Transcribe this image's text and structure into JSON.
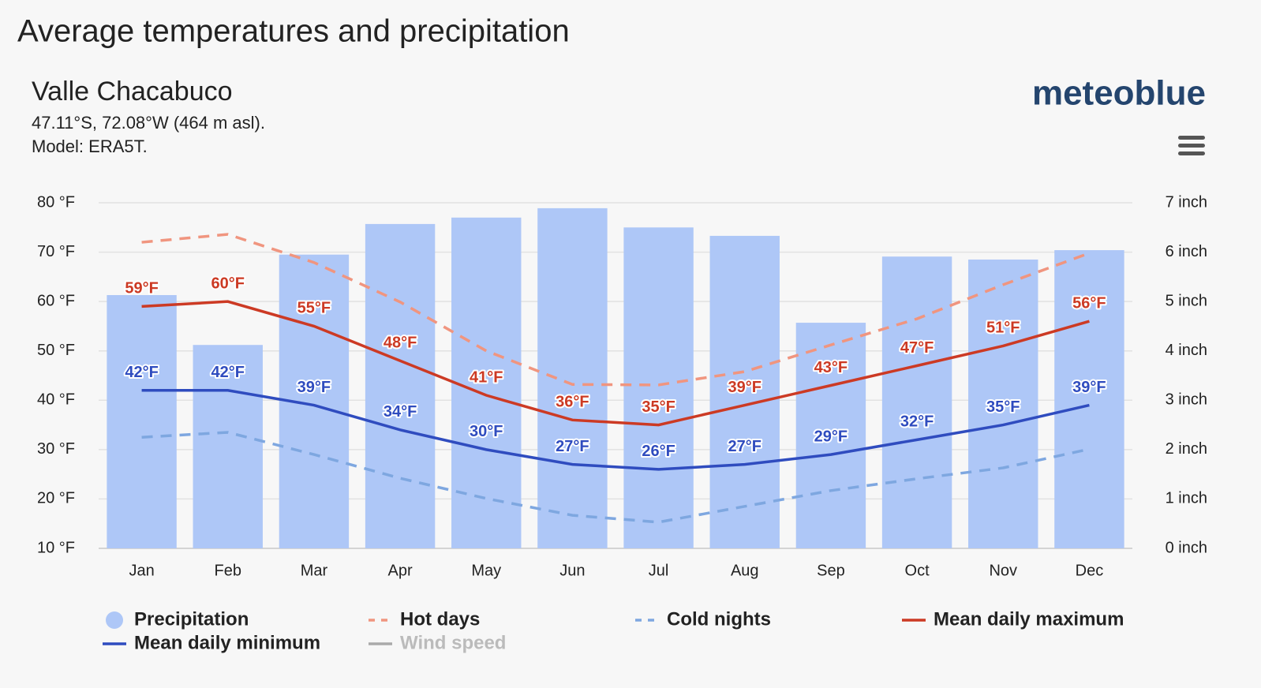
{
  "page_title": "Average temperatures and precipitation",
  "logo": "meteoblue",
  "chart_data": {
    "type": "combo",
    "title": "Valle Chacabuco",
    "subtitle": [
      "47.11°S, 72.08°W (464 m asl).",
      "Model: ERA5T."
    ],
    "categories": [
      "Jan",
      "Feb",
      "Mar",
      "Apr",
      "May",
      "Jun",
      "Jul",
      "Aug",
      "Sep",
      "Oct",
      "Nov",
      "Dec"
    ],
    "ylim": [
      10,
      80
    ],
    "yticks": [
      {
        "value": 10,
        "label": "10 °F"
      },
      {
        "value": 20,
        "label": "20 °F"
      },
      {
        "value": 30,
        "label": "30 °F"
      },
      {
        "value": 40,
        "label": "40 °F"
      },
      {
        "value": 50,
        "label": "50 °F"
      },
      {
        "value": 60,
        "label": "60 °F"
      },
      {
        "value": 70,
        "label": "70 °F"
      },
      {
        "value": 80,
        "label": "80 °F"
      }
    ],
    "y2lim": [
      0,
      7
    ],
    "y2ticks": [
      {
        "value": 0,
        "label": "0 inch"
      },
      {
        "value": 1,
        "label": "1 inch"
      },
      {
        "value": 2,
        "label": "2 inch"
      },
      {
        "value": 3,
        "label": "3 inch"
      },
      {
        "value": 4,
        "label": "4 inch"
      },
      {
        "value": 5,
        "label": "5 inch"
      },
      {
        "value": 6,
        "label": "6 inch"
      },
      {
        "value": 7,
        "label": "7 inch"
      }
    ],
    "grid": true,
    "series": [
      {
        "name": "Precipitation",
        "type": "bar",
        "axis": "y2",
        "color": "#aec7f7",
        "values": [
          5.13,
          4.12,
          5.95,
          6.57,
          6.7,
          6.89,
          6.5,
          6.33,
          4.57,
          5.91,
          5.85,
          6.04
        ]
      },
      {
        "name": "Hot days",
        "type": "line",
        "dashed": true,
        "color": "#f0957f",
        "values": [
          72.0,
          73.6,
          67.9,
          59.9,
          50.0,
          43.2,
          43.1,
          45.8,
          51.2,
          56.5,
          63.4,
          69.8
        ]
      },
      {
        "name": "Cold nights",
        "type": "line",
        "dashed": true,
        "color": "#7ea7e0",
        "values": [
          32.5,
          33.5,
          29.0,
          24.2,
          20.1,
          16.7,
          15.3,
          18.5,
          21.7,
          24.1,
          26.3,
          30.1
        ]
      },
      {
        "name": "Mean daily maximum",
        "type": "line",
        "color": "#cc3a24",
        "values": [
          59,
          60,
          55,
          48,
          41,
          36,
          35,
          39,
          43,
          47,
          51,
          56
        ],
        "value_labels": [
          "59°F",
          "60°F",
          "55°F",
          "48°F",
          "41°F",
          "36°F",
          "35°F",
          "39°F",
          "43°F",
          "47°F",
          "51°F",
          "56°F"
        ]
      },
      {
        "name": "Mean daily minimum",
        "type": "line",
        "color": "#2f4cbf",
        "values": [
          42,
          42,
          39,
          34,
          30,
          27,
          26,
          27,
          29,
          32,
          35,
          39
        ],
        "value_labels": [
          "42°F",
          "42°F",
          "39°F",
          "34°F",
          "30°F",
          "27°F",
          "26°F",
          "27°F",
          "29°F",
          "32°F",
          "35°F",
          "39°F"
        ]
      },
      {
        "name": "Wind speed",
        "type": "line",
        "color": "#aaaaaa",
        "visible": false
      }
    ]
  }
}
